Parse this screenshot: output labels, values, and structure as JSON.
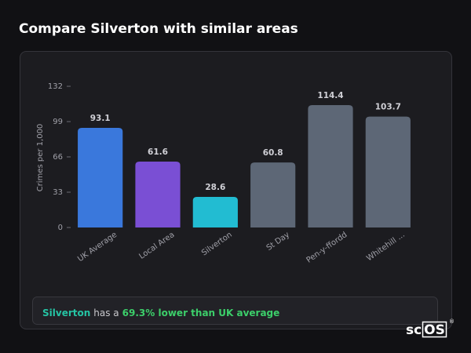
{
  "title": "Compare Silverton with similar areas",
  "chart_data": {
    "type": "bar",
    "ylabel": "Crimes per 1,000",
    "categories": [
      "UK Average",
      "Local Area",
      "Silverton",
      "St Day",
      "Pen-y-ffordd",
      "Whitehill ..."
    ],
    "values": [
      93.1,
      61.6,
      28.6,
      60.8,
      114.4,
      103.7
    ],
    "colors": [
      "#3a78dc",
      "#7a4fd4",
      "#22bcd2",
      "#5d6776",
      "#5d6776",
      "#5d6776"
    ],
    "ylim": [
      0,
      132
    ],
    "yticks": [
      0,
      33,
      66,
      99,
      132
    ],
    "grid": false
  },
  "footer": {
    "area": "Silverton",
    "middle": "has a",
    "comparison": "69.3% lower than UK average"
  },
  "logo": {
    "prefix": "sc",
    "suffix": "OS",
    "mark": "®"
  }
}
